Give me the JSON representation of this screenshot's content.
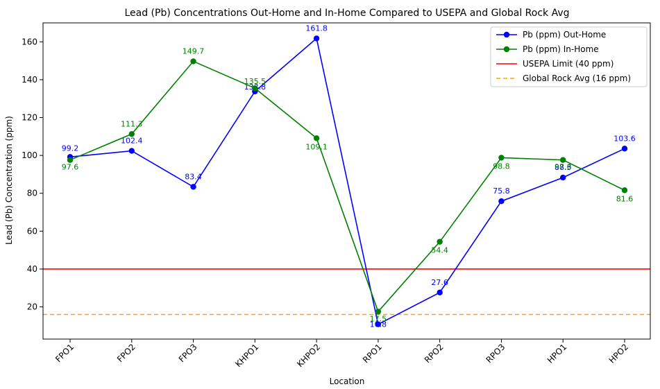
{
  "chart_data": {
    "type": "line",
    "title": "Lead (Pb) Concentrations Out-Home and In-Home Compared to USEPA and Global Rock Avg",
    "xlabel": "Location",
    "ylabel": "Lead (Pb) Concentration (ppm)",
    "categories": [
      "FPO1",
      "FPO2",
      "FPO3",
      "KHPO1",
      "KHPO2",
      "RPO1",
      "RPO2",
      "RPO3",
      "HPO1",
      "HPO2"
    ],
    "series": [
      {
        "name": "Pb (ppm) Out-Home",
        "color": "#0000ff",
        "values": [
          99.2,
          102.4,
          83.4,
          133.8,
          161.8,
          10.8,
          27.6,
          75.8,
          88.3,
          103.6
        ],
        "labels": [
          "99.2",
          "102.4",
          "83.4",
          "133.8",
          "161.8",
          "10.8",
          "27.6",
          "75.8",
          "88.3",
          "103.6"
        ]
      },
      {
        "name": "Pb (ppm) In-Home",
        "color": "#008000",
        "values": [
          97.6,
          111.3,
          149.7,
          135.5,
          109.1,
          17.5,
          54.4,
          98.8,
          97.6,
          81.6
        ],
        "labels": [
          "97.6",
          "111.3",
          "149.7",
          "135.5",
          "109.1",
          "17.5",
          "54.4",
          "98.8",
          "97.6",
          "81.6"
        ]
      }
    ],
    "reference_lines": [
      {
        "name": "USEPA Limit (40 ppm)",
        "value": 40,
        "color": "#ff0000",
        "style": "solid"
      },
      {
        "name": "Global Rock Avg (16 ppm)",
        "value": 16,
        "color": "#ffa500",
        "style": "dashed"
      }
    ],
    "ylim": [
      3,
      170
    ],
    "yticks": [
      20,
      40,
      60,
      80,
      100,
      120,
      140,
      160
    ],
    "grid": false,
    "legend_position": "top-right"
  }
}
